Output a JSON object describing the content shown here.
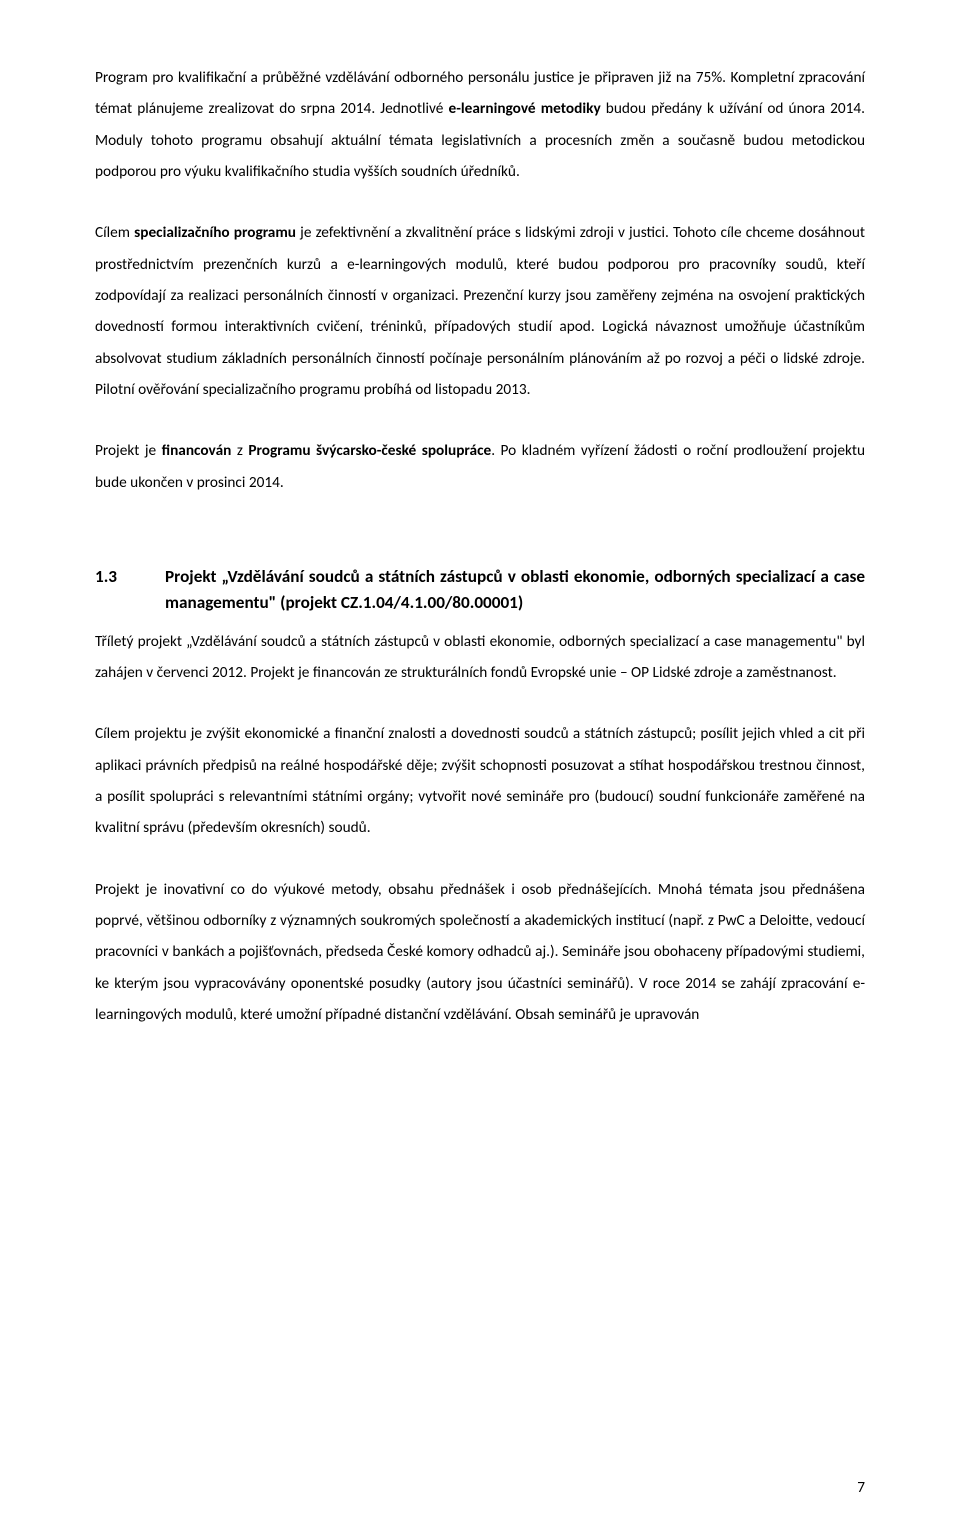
{
  "paragraphs": {
    "p1_a": "Program pro kvalifikační a průběžné vzdělávání odborného personálu justice je připraven již na 75%. Kompletní zpracování témat plánujeme zrealizovat do srpna 2014. Jednotlivé ",
    "p1_b": "e-learningové metodiky ",
    "p1_c": "budou předány k užívání od února 2014. Moduly tohoto programu obsahují aktuální témata legislativních a procesních změn a současně budou metodickou podporou pro výuku kvalifikačního studia vyšších soudních úředníků.",
    "p2_a": "Cílem ",
    "p2_b": "specializačního programu",
    "p2_c": " je zefektivnění a zkvalitnění práce s lidskými zdroji v justici. Tohoto cíle chceme dosáhnout prostřednictvím prezenčních kurzů a e-learningových modulů, které budou podporou pro pracovníky soudů, kteří zodpovídají za realizaci personálních činností v organizaci. Prezenční kurzy jsou zaměřeny zejména na osvojení praktických dovedností formou interaktivních cvičení, tréninků, případových studií apod. Logická návaznost umožňuje účastníkům absolvovat studium základních personálních činností počínaje personálním plánováním až po rozvoj a péči o lidské zdroje. Pilotní ověřování specializačního programu probíhá od listopadu 2013.",
    "p3_a": "Projekt je ",
    "p3_b": "financován",
    "p3_c": " z ",
    "p3_d": "Programu švýcarsko-české spolupráce",
    "p3_e": ". Po kladném vyřízení žádosti o roční prodloužení projektu bude ukončen v prosinci 2014.",
    "p4": "Tříletý projekt „Vzdělávání soudců a státních zástupců v oblasti ekonomie, odborných specializací a case managementu\" byl zahájen v červenci 2012. Projekt je financován ze strukturálních fondů Evropské unie – OP Lidské zdroje a zaměstnanost.",
    "p5": "Cílem projektu je zvýšit ekonomické a finanční znalosti a dovednosti soudců a státních zástupců; posílit jejich vhled a cit při aplikaci právních předpisů na reálné hospodářské děje; zvýšit schopnosti posuzovat a stíhat hospodářskou trestnou činnost, a posílit spolupráci s relevantními státními orgány; vytvořit nové semináře pro (budoucí) soudní funkcionáře zaměřené na kvalitní správu (především okresních) soudů.",
    "p6": "Projekt je inovativní co do výukové metody, obsahu přednášek i osob přednášejících. Mnohá témata jsou přednášena poprvé, většinou odborníky z významných soukromých společností a akademických institucí (např. z PwC a Deloitte, vedoucí pracovníci v bankách a pojišťovnách, předseda České komory odhadců aj.). Semináře jsou obohaceny případovými studiemi, ke kterým jsou vypracovávány oponentské posudky (autory jsou účastníci seminářů). V roce 2014 se zahájí zpracování e-learningových modulů, které umožní případné distanční vzdělávání. Obsah seminářů je upravován"
  },
  "heading": {
    "num": "1.3",
    "title": "Projekt „Vzdělávání soudců a státních zástupců v oblasti ekonomie, odborných specializací a case managementu\" (projekt CZ.1.04/4.1.00/80.00001)"
  },
  "pageNumber": "7"
}
